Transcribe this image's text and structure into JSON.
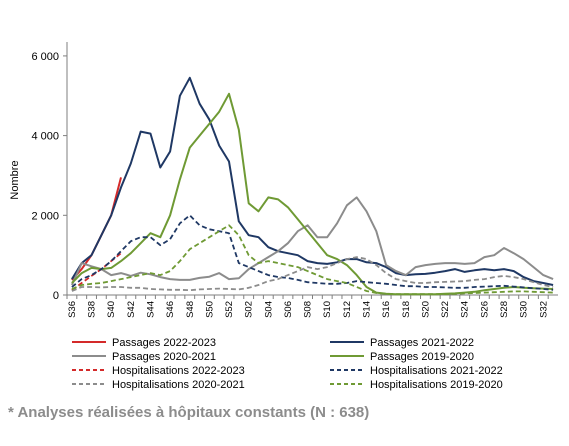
{
  "chart_data": {
    "type": "line",
    "title": "",
    "ylabel": "Nombre",
    "xlabel": "",
    "ylim": [
      0,
      6600
    ],
    "y_ticks": [
      0,
      2000,
      4000,
      6000
    ],
    "y_tick_labels": [
      "0",
      "2 000",
      "4 000",
      "6 000"
    ],
    "grid": false,
    "legend_position": "bottom",
    "x_tick_labels": [
      "S36",
      "S38",
      "S40",
      "S42",
      "S44",
      "S46",
      "S48",
      "S50",
      "S52",
      "S02",
      "S04",
      "S06",
      "S08",
      "S10",
      "S12",
      "S14",
      "S16",
      "S18",
      "S20",
      "S22",
      "S24",
      "S26",
      "S28",
      "S30",
      "S32"
    ],
    "weeks": [
      "S36",
      "S37",
      "S38",
      "S39",
      "S40",
      "S41",
      "S42",
      "S43",
      "S44",
      "S45",
      "S46",
      "S47",
      "S48",
      "S49",
      "S50",
      "S51",
      "S52",
      "S01",
      "S02",
      "S03",
      "S04",
      "S05",
      "S06",
      "S07",
      "S08",
      "S09",
      "S10",
      "S11",
      "S12",
      "S13",
      "S14",
      "S15",
      "S16",
      "S17",
      "S18",
      "S19",
      "S20",
      "S21",
      "S22",
      "S23",
      "S24",
      "S25",
      "S26",
      "S27",
      "S28",
      "S29",
      "S30",
      "S31",
      "S32",
      "S33"
    ],
    "series": [
      {
        "name": "Passages 2022-2023",
        "color": "#d42a2a",
        "dash": "solid",
        "values": [
          380,
          650,
          1000,
          1500,
          2000,
          2950
        ]
      },
      {
        "name": "Passages 2021-2022",
        "color": "#1f3864",
        "dash": "solid",
        "values": [
          400,
          800,
          1000,
          1500,
          2000,
          2700,
          3300,
          4100,
          4050,
          3200,
          3600,
          5000,
          5450,
          4800,
          4400,
          3750,
          3350,
          1850,
          1500,
          1450,
          1200,
          1100,
          1050,
          1000,
          850,
          800,
          780,
          820,
          900,
          900,
          820,
          800,
          700,
          550,
          500,
          520,
          530,
          560,
          600,
          650,
          580,
          620,
          650,
          620,
          650,
          600,
          450,
          350,
          300,
          250
        ]
      },
      {
        "name": "Passages 2020-2021",
        "color": "#8c8c8c",
        "dash": "solid",
        "values": [
          250,
          800,
          720,
          650,
          500,
          550,
          480,
          560,
          520,
          450,
          400,
          380,
          380,
          430,
          460,
          550,
          400,
          420,
          650,
          800,
          950,
          1100,
          1300,
          1600,
          1750,
          1450,
          1450,
          1800,
          2250,
          2450,
          2100,
          1600,
          750,
          600,
          500,
          700,
          750,
          780,
          800,
          800,
          780,
          800,
          950,
          1000,
          1180,
          1050,
          900,
          700,
          500,
          400
        ]
      },
      {
        "name": "Passages 2019-2020",
        "color": "#6f9a34",
        "dash": "solid",
        "values": [
          300,
          550,
          680,
          650,
          680,
          850,
          1050,
          1300,
          1550,
          1450,
          2000,
          2900,
          3700,
          4000,
          4300,
          4600,
          5050,
          4150,
          2300,
          2100,
          2450,
          2400,
          2200,
          1900,
          1600,
          1300,
          1000,
          900,
          750,
          500,
          200,
          60,
          30,
          20,
          20,
          20,
          20,
          20,
          30,
          40,
          60,
          80,
          120,
          150,
          180,
          200,
          180,
          170,
          160,
          150
        ]
      },
      {
        "name": "Hospitalisations 2022-2023",
        "color": "#d42a2a",
        "dash": "dashed",
        "values": [
          120,
          300,
          480,
          650,
          850,
          1050
        ]
      },
      {
        "name": "Hospitalisations 2021-2022",
        "color": "#1f3864",
        "dash": "dashed",
        "values": [
          200,
          400,
          500,
          650,
          850,
          1100,
          1350,
          1450,
          1450,
          1250,
          1400,
          1800,
          2000,
          1750,
          1650,
          1600,
          1550,
          800,
          700,
          600,
          500,
          450,
          430,
          380,
          320,
          300,
          280,
          280,
          300,
          350,
          320,
          300,
          280,
          250,
          220,
          220,
          200,
          200,
          190,
          180,
          180,
          200,
          210,
          220,
          230,
          210,
          190,
          170,
          150,
          130
        ]
      },
      {
        "name": "Hospitalisations 2020-2021",
        "color": "#8c8c8c",
        "dash": "dashed",
        "values": [
          100,
          200,
          200,
          190,
          200,
          200,
          180,
          180,
          150,
          140,
          130,
          130,
          120,
          140,
          150,
          160,
          150,
          140,
          180,
          250,
          350,
          400,
          500,
          600,
          700,
          650,
          700,
          800,
          900,
          950,
          900,
          750,
          550,
          400,
          350,
          300,
          300,
          320,
          330,
          340,
          350,
          380,
          400,
          450,
          480,
          450,
          400,
          320,
          250,
          200
        ]
      },
      {
        "name": "Hospitalisations 2019-2020",
        "color": "#6f9a34",
        "dash": "dashed",
        "values": [
          150,
          250,
          280,
          300,
          350,
          400,
          450,
          500,
          550,
          500,
          600,
          850,
          1150,
          1300,
          1450,
          1600,
          1750,
          1500,
          1000,
          800,
          850,
          800,
          750,
          700,
          600,
          500,
          400,
          350,
          300,
          200,
          100,
          50,
          30,
          20,
          20,
          20,
          20,
          20,
          20,
          30,
          40,
          50,
          60,
          70,
          80,
          90,
          90,
          80,
          70,
          60
        ]
      }
    ]
  },
  "legend": [
    {
      "label": "Passages 2022-2023",
      "color": "#d42a2a",
      "dash": "solid"
    },
    {
      "label": "Passages 2021-2022",
      "color": "#1f3864",
      "dash": "solid"
    },
    {
      "label": "Passages 2020-2021",
      "color": "#8c8c8c",
      "dash": "solid"
    },
    {
      "label": "Passages 2019-2020",
      "color": "#6f9a34",
      "dash": "solid"
    },
    {
      "label": "Hospitalisations 2022-2023",
      "color": "#d42a2a",
      "dash": "dashed"
    },
    {
      "label": "Hospitalisations 2021-2022",
      "color": "#1f3864",
      "dash": "dashed"
    },
    {
      "label": "Hospitalisations 2020-2021",
      "color": "#8c8c8c",
      "dash": "dashed"
    },
    {
      "label": "Hospitalisations 2019-2020",
      "color": "#6f9a34",
      "dash": "dashed"
    }
  ],
  "footnote": "* Analyses réalisées à hôpitaux constants (N : 638)"
}
